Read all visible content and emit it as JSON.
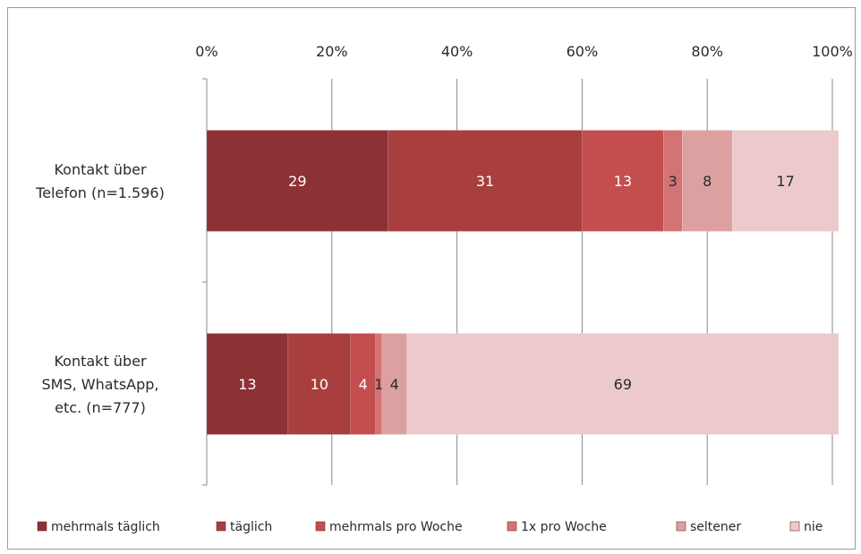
{
  "chart_data": {
    "type": "bar",
    "orientation": "horizontal",
    "stacked": true,
    "percent_stacked": true,
    "categories": [
      "Kontakt über Telefon (n=1.596)",
      "Kontakt über SMS, WhatsApp, etc. (n=777)"
    ],
    "category_label_lines": [
      [
        "Kontakt über",
        "Telefon (n=1.596)"
      ],
      [
        "Kontakt über",
        "SMS, WhatsApp,",
        "etc. (n=777)"
      ]
    ],
    "series": [
      {
        "name": "mehrmals täglich",
        "values": [
          29,
          13
        ],
        "color": "#8c3134"
      },
      {
        "name": "täglich",
        "values": [
          31,
          10
        ],
        "color": "#a83e3e"
      },
      {
        "name": "mehrmals pro Woche",
        "values": [
          13,
          4
        ],
        "color": "#c44d4e"
      },
      {
        "name": "1x pro Woche",
        "values": [
          3,
          1
        ],
        "color": "#d27474"
      },
      {
        "name": "seltener",
        "values": [
          8,
          4
        ],
        "color": "#dca0a1"
      },
      {
        "name": "nie",
        "values": [
          17,
          69
        ],
        "color": "#eccacc"
      }
    ],
    "xlim": [
      0,
      100
    ],
    "xticks": [
      0,
      20,
      40,
      60,
      80,
      100
    ],
    "xtick_labels": [
      "0%",
      "20%",
      "40%",
      "60%",
      "80%",
      "100%"
    ],
    "x_axis_position": "top",
    "grid": true,
    "legend_position": "bottom",
    "title": "",
    "xlabel": "",
    "ylabel": ""
  },
  "colors": {
    "grid": "#8a8a8a",
    "label_dark": "#2a2a2a",
    "label_light": "#ffffff"
  }
}
